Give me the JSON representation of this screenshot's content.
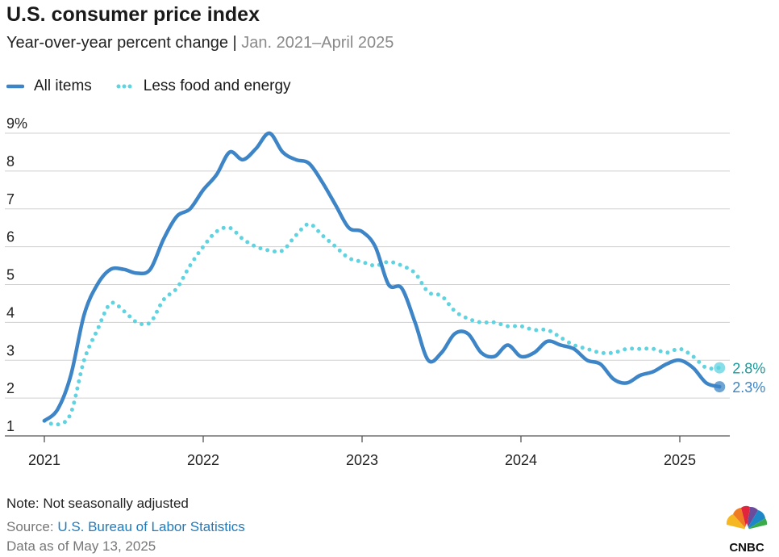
{
  "header": {
    "title": "U.S. consumer price index",
    "subtitle_main": "Year-over-year percent change",
    "subtitle_sep": " | ",
    "subtitle_range": "Jan. 2021–April 2025"
  },
  "footer": {
    "note": "Note: Not seasonally adjusted",
    "source_label": "Source: ",
    "source_link": "U.S. Bureau of Labor Statistics",
    "as_of": "Data as of May 13, 2025"
  },
  "brand": {
    "logo_text": "CNBC"
  },
  "colors": {
    "all_items": "#3d85c6",
    "core": "#5fd3e0",
    "core_label": "#1a9a9a",
    "grid": "#d0d0d0",
    "axis": "#555555"
  },
  "chart_data": {
    "type": "line",
    "x_start": "2021-01",
    "x_end": "2025-04",
    "x_ticks": [
      "2021",
      "2022",
      "2023",
      "2024",
      "2025"
    ],
    "y_ticks": [
      "1",
      "2",
      "3",
      "4",
      "5",
      "6",
      "7",
      "8",
      "9%"
    ],
    "ylim": [
      1,
      9
    ],
    "grid": true,
    "legend_position": "top-left",
    "series": [
      {
        "name": "All items",
        "style": "solid",
        "end_label": "2.3%",
        "values": [
          1.4,
          1.7,
          2.6,
          4.2,
          5.0,
          5.4,
          5.4,
          5.3,
          5.4,
          6.2,
          6.8,
          7.0,
          7.5,
          7.9,
          8.5,
          8.3,
          8.6,
          9.0,
          8.5,
          8.3,
          8.2,
          7.7,
          7.1,
          6.5,
          6.4,
          6.0,
          5.0,
          4.9,
          4.0,
          3.0,
          3.2,
          3.7,
          3.7,
          3.2,
          3.1,
          3.4,
          3.1,
          3.2,
          3.5,
          3.4,
          3.3,
          3.0,
          2.9,
          2.5,
          2.4,
          2.6,
          2.7,
          2.9,
          3.0,
          2.8,
          2.4,
          2.3
        ]
      },
      {
        "name": "Less food and energy",
        "style": "dotted",
        "end_label": "2.8%",
        "values": [
          1.4,
          1.3,
          1.6,
          3.0,
          3.8,
          4.5,
          4.3,
          4.0,
          4.0,
          4.6,
          4.9,
          5.5,
          6.0,
          6.4,
          6.5,
          6.2,
          6.0,
          5.9,
          5.9,
          6.3,
          6.6,
          6.3,
          6.0,
          5.7,
          5.6,
          5.5,
          5.6,
          5.5,
          5.3,
          4.8,
          4.7,
          4.3,
          4.1,
          4.0,
          4.0,
          3.9,
          3.9,
          3.8,
          3.8,
          3.6,
          3.4,
          3.3,
          3.2,
          3.2,
          3.3,
          3.3,
          3.3,
          3.2,
          3.3,
          3.1,
          2.8,
          2.8
        ]
      }
    ]
  }
}
